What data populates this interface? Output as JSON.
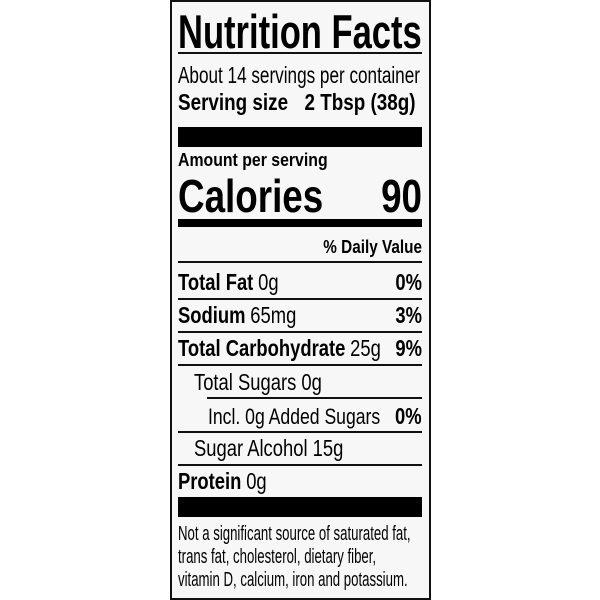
{
  "label": {
    "title": "Nutrition Facts",
    "servings_per_container": "About 14 servings per container",
    "serving_size_label": "Serving size",
    "serving_size_value": "2 Tbsp (38g)",
    "amount_per_serving": "Amount per serving",
    "calories_label": "Calories",
    "calories_value": "90",
    "daily_value_header": "% Daily Value",
    "nutrients": [
      {
        "name": "Total Fat",
        "amount": "0g",
        "dv": "0%"
      },
      {
        "name": "Sodium",
        "amount": "65mg",
        "dv": "3%"
      },
      {
        "name": "Total Carbohydrate",
        "amount": "25g",
        "dv": "9%"
      },
      {
        "name": "Total Sugars 0g"
      },
      {
        "name": "Incl. 0g Added Sugars",
        "dv": "0%"
      },
      {
        "name": "Sugar Alcohol 15g"
      },
      {
        "name": "Protein",
        "amount": "0g"
      }
    ],
    "footnote": [
      "Not a significant source of saturated fat,",
      "trans fat, cholesterol, dietary fiber,",
      "vitamin D, calcium, iron and potassium."
    ]
  }
}
